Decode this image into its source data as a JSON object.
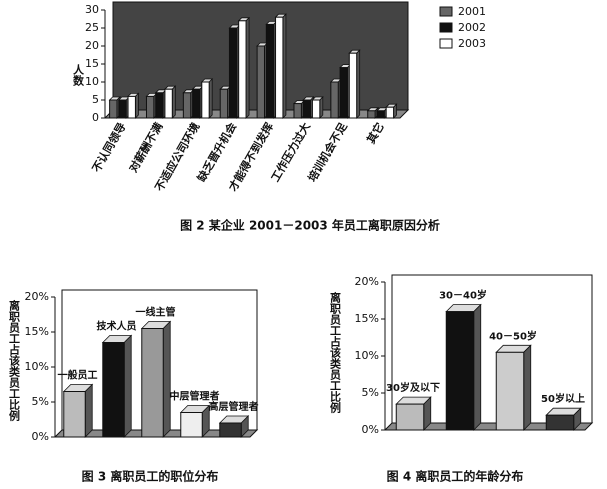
{
  "chart_data": [
    {
      "type": "bar",
      "caption": "图 2  某企业 2001－2003 年员工离职原因分析",
      "ylabel": "人数",
      "categories": [
        "不认同领导",
        "对薪酬不满",
        "不适应公司环境",
        "缺乏晋升机会",
        "才能得不到发挥",
        "工作压力过大",
        "培训机会不足",
        "其它"
      ],
      "series": [
        {
          "name": "2001",
          "color": "#666666",
          "values": [
            5,
            6,
            7,
            8,
            20,
            4,
            10,
            2
          ]
        },
        {
          "name": "2002",
          "color": "#111111",
          "values": [
            5,
            7,
            8,
            25,
            26,
            5,
            14,
            2
          ]
        },
        {
          "name": "2003",
          "color": "#ffffff",
          "values": [
            6,
            8,
            10,
            27,
            28,
            5,
            18,
            3
          ]
        }
      ],
      "ylim": [
        0,
        30
      ],
      "yticks": [
        0,
        5,
        10,
        15,
        20,
        25,
        30
      ],
      "legend": "right",
      "grid": false
    },
    {
      "type": "bar",
      "caption": "图 3  离职员工的职位分布",
      "ylabel": "离职员工占该类员工比例",
      "categories": [
        "一般员工",
        "技术人员",
        "一线主管",
        "中层管理者",
        "高层管理者"
      ],
      "values": [
        6.5,
        13.5,
        15.5,
        3.5,
        2
      ],
      "colors": [
        "#bbbbbb",
        "#111111",
        "#999999",
        "#eeeeee",
        "#333333"
      ],
      "ylim": [
        0,
        20
      ],
      "yticks": [
        {
          "value": 0,
          "label": "0%"
        },
        {
          "value": 5,
          "label": "5%"
        },
        {
          "value": 10,
          "label": "10%"
        },
        {
          "value": 15,
          "label": "15%"
        },
        {
          "value": 20,
          "label": "20%"
        }
      ],
      "grid": false
    },
    {
      "type": "bar",
      "caption": "图 4  离职员工的年龄分布",
      "ylabel": "离职员工占该类员工比例",
      "categories": [
        "30岁及以下",
        "30－40岁",
        "40－50岁",
        "50岁以上"
      ],
      "values": [
        3.5,
        16,
        10.5,
        2
      ],
      "colors": [
        "#bbbbbb",
        "#111111",
        "#cccccc",
        "#333333"
      ],
      "ylim": [
        0,
        20
      ],
      "yticks": [
        {
          "value": 0,
          "label": "0%"
        },
        {
          "value": 5,
          "label": "5%"
        },
        {
          "value": 10,
          "label": "10%"
        },
        {
          "value": 15,
          "label": "15%"
        },
        {
          "value": 20,
          "label": "20%"
        }
      ],
      "grid": false
    }
  ]
}
